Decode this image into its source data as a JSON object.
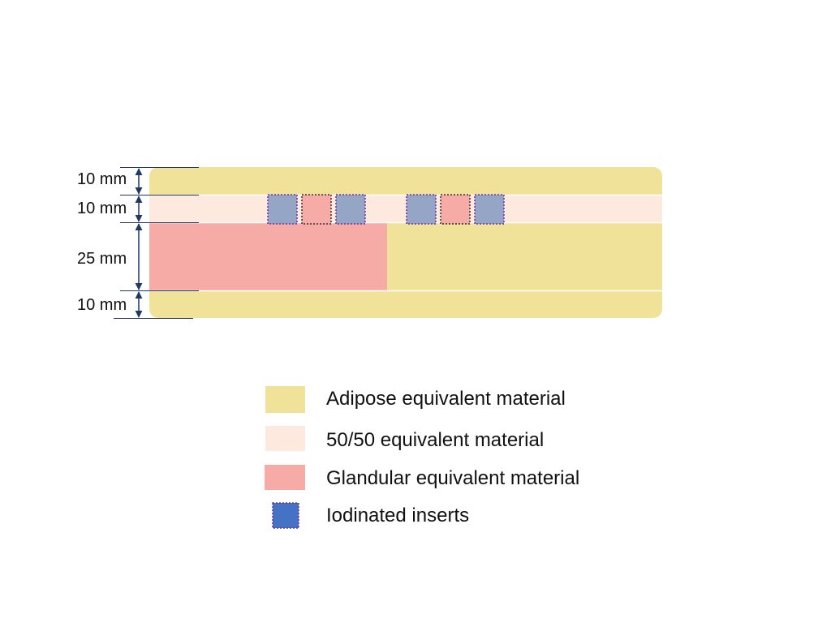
{
  "colors": {
    "adipose": "#f0e399",
    "fifty_fifty": "#fde9dd",
    "glandular": "#f7aba7",
    "iodinated": "#4472c4",
    "iodinated_in_phantom": "#94a5c6",
    "dimension_line": "#1f3864",
    "insert_border": "#7030a0"
  },
  "dimensions": [
    {
      "label": "10 mm",
      "layer": "top-adipose"
    },
    {
      "label": "10 mm",
      "layer": "insert-layer"
    },
    {
      "label": "25 mm",
      "layer": "glandular-adipose-layer"
    },
    {
      "label": "10 mm",
      "layer": "bottom-adipose"
    }
  ],
  "inserts": [
    {
      "material": "iodinated"
    },
    {
      "material": "fifty_fifty"
    },
    {
      "material": "iodinated"
    },
    {
      "material": "iodinated"
    },
    {
      "material": "fifty_fifty"
    },
    {
      "material": "iodinated"
    }
  ],
  "legend": [
    {
      "label": "Adipose equivalent material",
      "swatch": "adipose"
    },
    {
      "label": "50/50 equivalent material",
      "swatch": "fifty_fifty"
    },
    {
      "label": "Glandular equivalent material",
      "swatch": "glandular"
    },
    {
      "label": "Iodinated inserts",
      "swatch": "iodinated"
    }
  ]
}
